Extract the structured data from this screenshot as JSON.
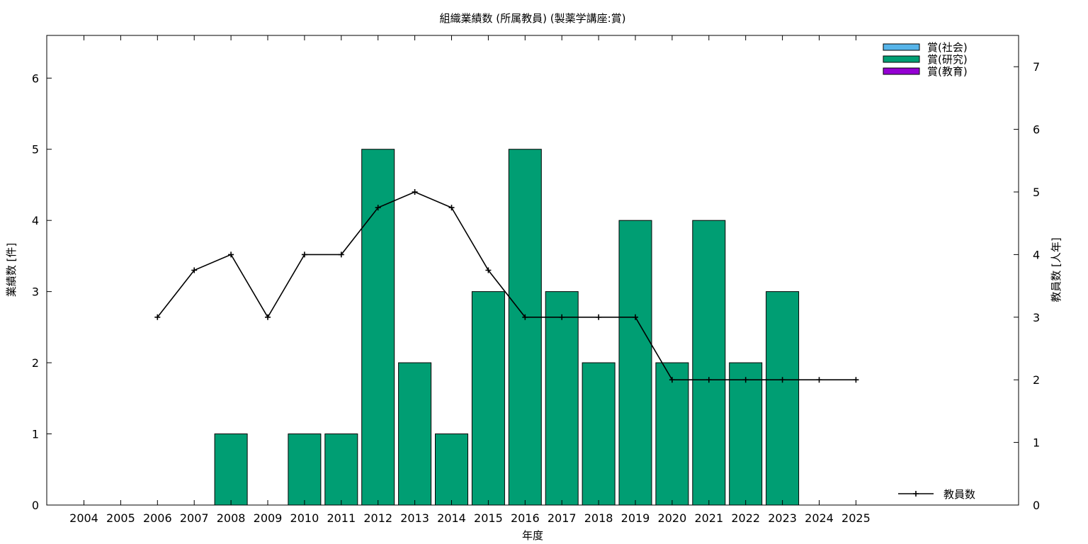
{
  "chart_data": {
    "type": "bar",
    "title": "組織業績数 (所属教員) (製薬学講座:賞)",
    "xlabel": "年度",
    "ylabel": "業績数 [件]",
    "y2label": "教員数 [人年]",
    "categories": [
      "2004",
      "2005",
      "2006",
      "2007",
      "2008",
      "2009",
      "2010",
      "2011",
      "2012",
      "2013",
      "2014",
      "2015",
      "2016",
      "2017",
      "2018",
      "2019",
      "2020",
      "2021",
      "2022",
      "2023",
      "2024",
      "2025"
    ],
    "ylim": [
      0,
      6.6
    ],
    "y2lim": [
      0,
      7.5
    ],
    "yticks": [
      0,
      1,
      2,
      3,
      4,
      5,
      6
    ],
    "y2ticks": [
      0,
      1,
      2,
      3,
      4,
      5,
      6,
      7
    ],
    "series": [
      {
        "name": "賞(社会)",
        "kind": "bar",
        "color": "#56b4e9",
        "values": [
          0,
          0,
          0,
          0,
          0,
          0,
          0,
          0,
          0,
          0,
          0,
          0,
          0,
          0,
          0,
          0,
          0,
          0,
          0,
          0,
          0,
          0
        ]
      },
      {
        "name": "賞(研究)",
        "kind": "bar",
        "color": "#009e73",
        "values": [
          0,
          0,
          0,
          0,
          1,
          0,
          1,
          1,
          5,
          2,
          1,
          3,
          5,
          3,
          2,
          4,
          2,
          4,
          2,
          3,
          0,
          0
        ]
      },
      {
        "name": "賞(教育)",
        "kind": "bar",
        "color": "#9400d3",
        "values": [
          0,
          0,
          0,
          0,
          0,
          0,
          0,
          0,
          0,
          0,
          0,
          0,
          0,
          0,
          0,
          0,
          0,
          0,
          0,
          0,
          0,
          0
        ]
      },
      {
        "name": "教員数",
        "kind": "line",
        "axis": "y2",
        "color": "#000000",
        "values": [
          null,
          null,
          3,
          3.75,
          4,
          3,
          4,
          4,
          4.75,
          5,
          4.75,
          3.75,
          3,
          3,
          3,
          3,
          2,
          2,
          2,
          2,
          2,
          2
        ]
      }
    ],
    "legend": "top-right",
    "line_legend": "bottom-right",
    "grid": false
  }
}
